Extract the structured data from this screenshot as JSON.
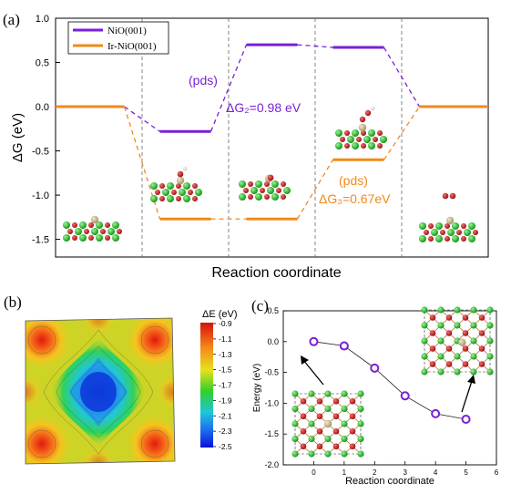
{
  "panel_a": {
    "label": "(a)",
    "legend": [
      "NiO(001)",
      "Ir-NiO(001)"
    ],
    "annot_pds1": "(pds)",
    "annot_dg2": "ΔG₂=0.98 eV",
    "annot_pds2": "(pds)",
    "annot_dg3": "ΔG₃=0.67eV"
  },
  "panel_b": {
    "label": "(b)",
    "colorbar_title": "ΔE (eV)",
    "colorbar_ticks": [
      "-0.9",
      "-1.1",
      "-1.3",
      "-1.5",
      "-1.7",
      "-1.9",
      "-2.1",
      "-2.3",
      "-2.5"
    ]
  },
  "panel_c": {
    "label": "(c)"
  },
  "colors": {
    "nio": "#7a1fd6",
    "irnio": "#f08a1c",
    "ni_atom": "#22bb22",
    "o_atom": "#cc2222",
    "ir_atom": "#c8b88a"
  },
  "chart_data": [
    {
      "type": "line",
      "ylabel": "ΔG (eV)",
      "xlabel": "Reaction coordinate",
      "ylim": [
        -1.7,
        1.0
      ],
      "yticks": [
        -1.5,
        -1.0,
        -0.5,
        0.0,
        0.5,
        1.0
      ],
      "grid": false,
      "legend_position": "top-left",
      "steps": 5,
      "series": [
        {
          "name": "NiO(001)",
          "values": [
            0.0,
            -0.28,
            0.7,
            0.67,
            0.0
          ]
        },
        {
          "name": "Ir-NiO(001)",
          "values": [
            0.0,
            -1.27,
            -1.27,
            -0.6,
            0.0
          ]
        }
      ]
    },
    {
      "type": "heatmap",
      "colorbar_label": "ΔE (eV)",
      "range": [
        -2.5,
        -0.9
      ]
    },
    {
      "type": "line",
      "xlabel": "Reaction coordinate",
      "ylabel": "Energy (eV)",
      "xlim": [
        -1,
        6
      ],
      "ylim": [
        -2.0,
        0.5
      ],
      "xticks": [
        0,
        1,
        2,
        3,
        4,
        5,
        6
      ],
      "yticks": [
        -2.0,
        -1.5,
        -1.0,
        -0.5,
        0.0,
        0.5
      ],
      "x": [
        0,
        1,
        2,
        3,
        4,
        5
      ],
      "values": [
        0.0,
        -0.07,
        -0.43,
        -0.88,
        -1.17,
        -1.26
      ]
    }
  ]
}
